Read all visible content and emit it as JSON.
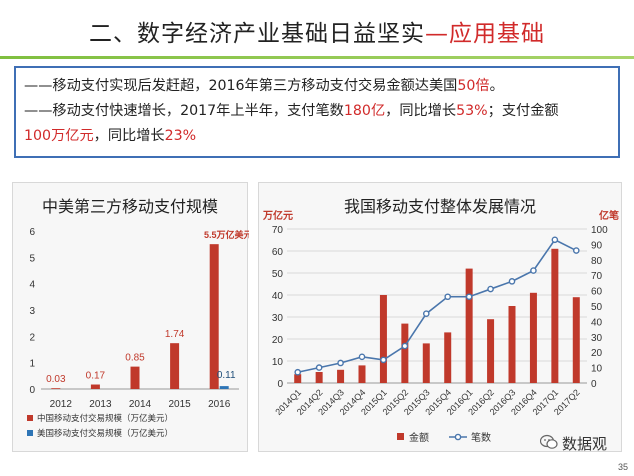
{
  "header": {
    "title_main": "二、数字经济产业基础日益坚实",
    "title_accent": "—应用基础"
  },
  "summary": {
    "line1": {
      "pre": "——移动支付实现后发赶超，2016年第三方移动支付交易金额达美国",
      "hl": "50倍",
      "post": "。"
    },
    "line2": {
      "pre": "——移动支付快速增长，2017年上半年，支付笔数",
      "hl1": "180亿",
      "mid": "，同比增长",
      "hl2": "53%",
      "post": "；支付金额"
    },
    "line3": {
      "hl1": "100万亿元",
      "mid": "，同比增长",
      "hl2": "23%"
    }
  },
  "chart_data": [
    {
      "type": "bar",
      "title": "中美第三方移动支付规模",
      "categories": [
        "2012",
        "2013",
        "2014",
        "2015",
        "2016"
      ],
      "series": [
        {
          "name": "中国移动支付交易规模（万亿美元）",
          "color": "#c0392b",
          "values": [
            0.03,
            0.17,
            0.85,
            1.74,
            5.5
          ]
        },
        {
          "name": "美国移动支付交易规模（万亿美元）",
          "color": "#2e75b6",
          "values": [
            null,
            null,
            null,
            null,
            0.11
          ]
        }
      ],
      "data_labels": [
        "0.03",
        "0.17",
        "0.85",
        "1.74",
        "5.5万亿美元",
        "0.11"
      ],
      "ylim": [
        0,
        6
      ],
      "yticks": [
        "0",
        "1",
        "2",
        "3",
        "4",
        "5",
        "6"
      ],
      "grid": false,
      "legend": "bottom"
    },
    {
      "type": "bar",
      "title": "我国移动支付整体发展情况",
      "categories": [
        "2014Q1",
        "2014Q2",
        "2014Q3",
        "2014Q4",
        "2015Q1",
        "2015Q2",
        "2015Q3",
        "2015Q4",
        "2016Q1",
        "2016Q2",
        "2016Q3",
        "2016Q4",
        "2017Q1",
        "2017Q2"
      ],
      "series": [
        {
          "name": "金额",
          "type": "bar",
          "axis": "left",
          "color": "#c0392b",
          "values": [
            4,
            5,
            6,
            8,
            40,
            27,
            18,
            23,
            52,
            29,
            35,
            41,
            61,
            39
          ]
        },
        {
          "name": "笔数",
          "type": "line",
          "axis": "right",
          "color": "#4a76ac",
          "values": [
            7,
            10,
            13,
            17,
            15,
            24,
            45,
            56,
            56,
            61,
            66,
            73,
            93,
            86
          ]
        }
      ],
      "ylabel_left": "万亿元",
      "ylabel_right": "亿笔",
      "ylim_left": [
        0,
        70
      ],
      "ylim_right": [
        0,
        100
      ],
      "yticks_left": [
        "0",
        "10",
        "20",
        "30",
        "40",
        "50",
        "60",
        "70"
      ],
      "yticks_right": [
        "0",
        "10",
        "20",
        "30",
        "40",
        "50",
        "60",
        "70",
        "80",
        "90",
        "100"
      ],
      "grid": true,
      "legend": "bottom"
    }
  ],
  "footer": {
    "watermark": "数据观",
    "page_number": "35"
  }
}
